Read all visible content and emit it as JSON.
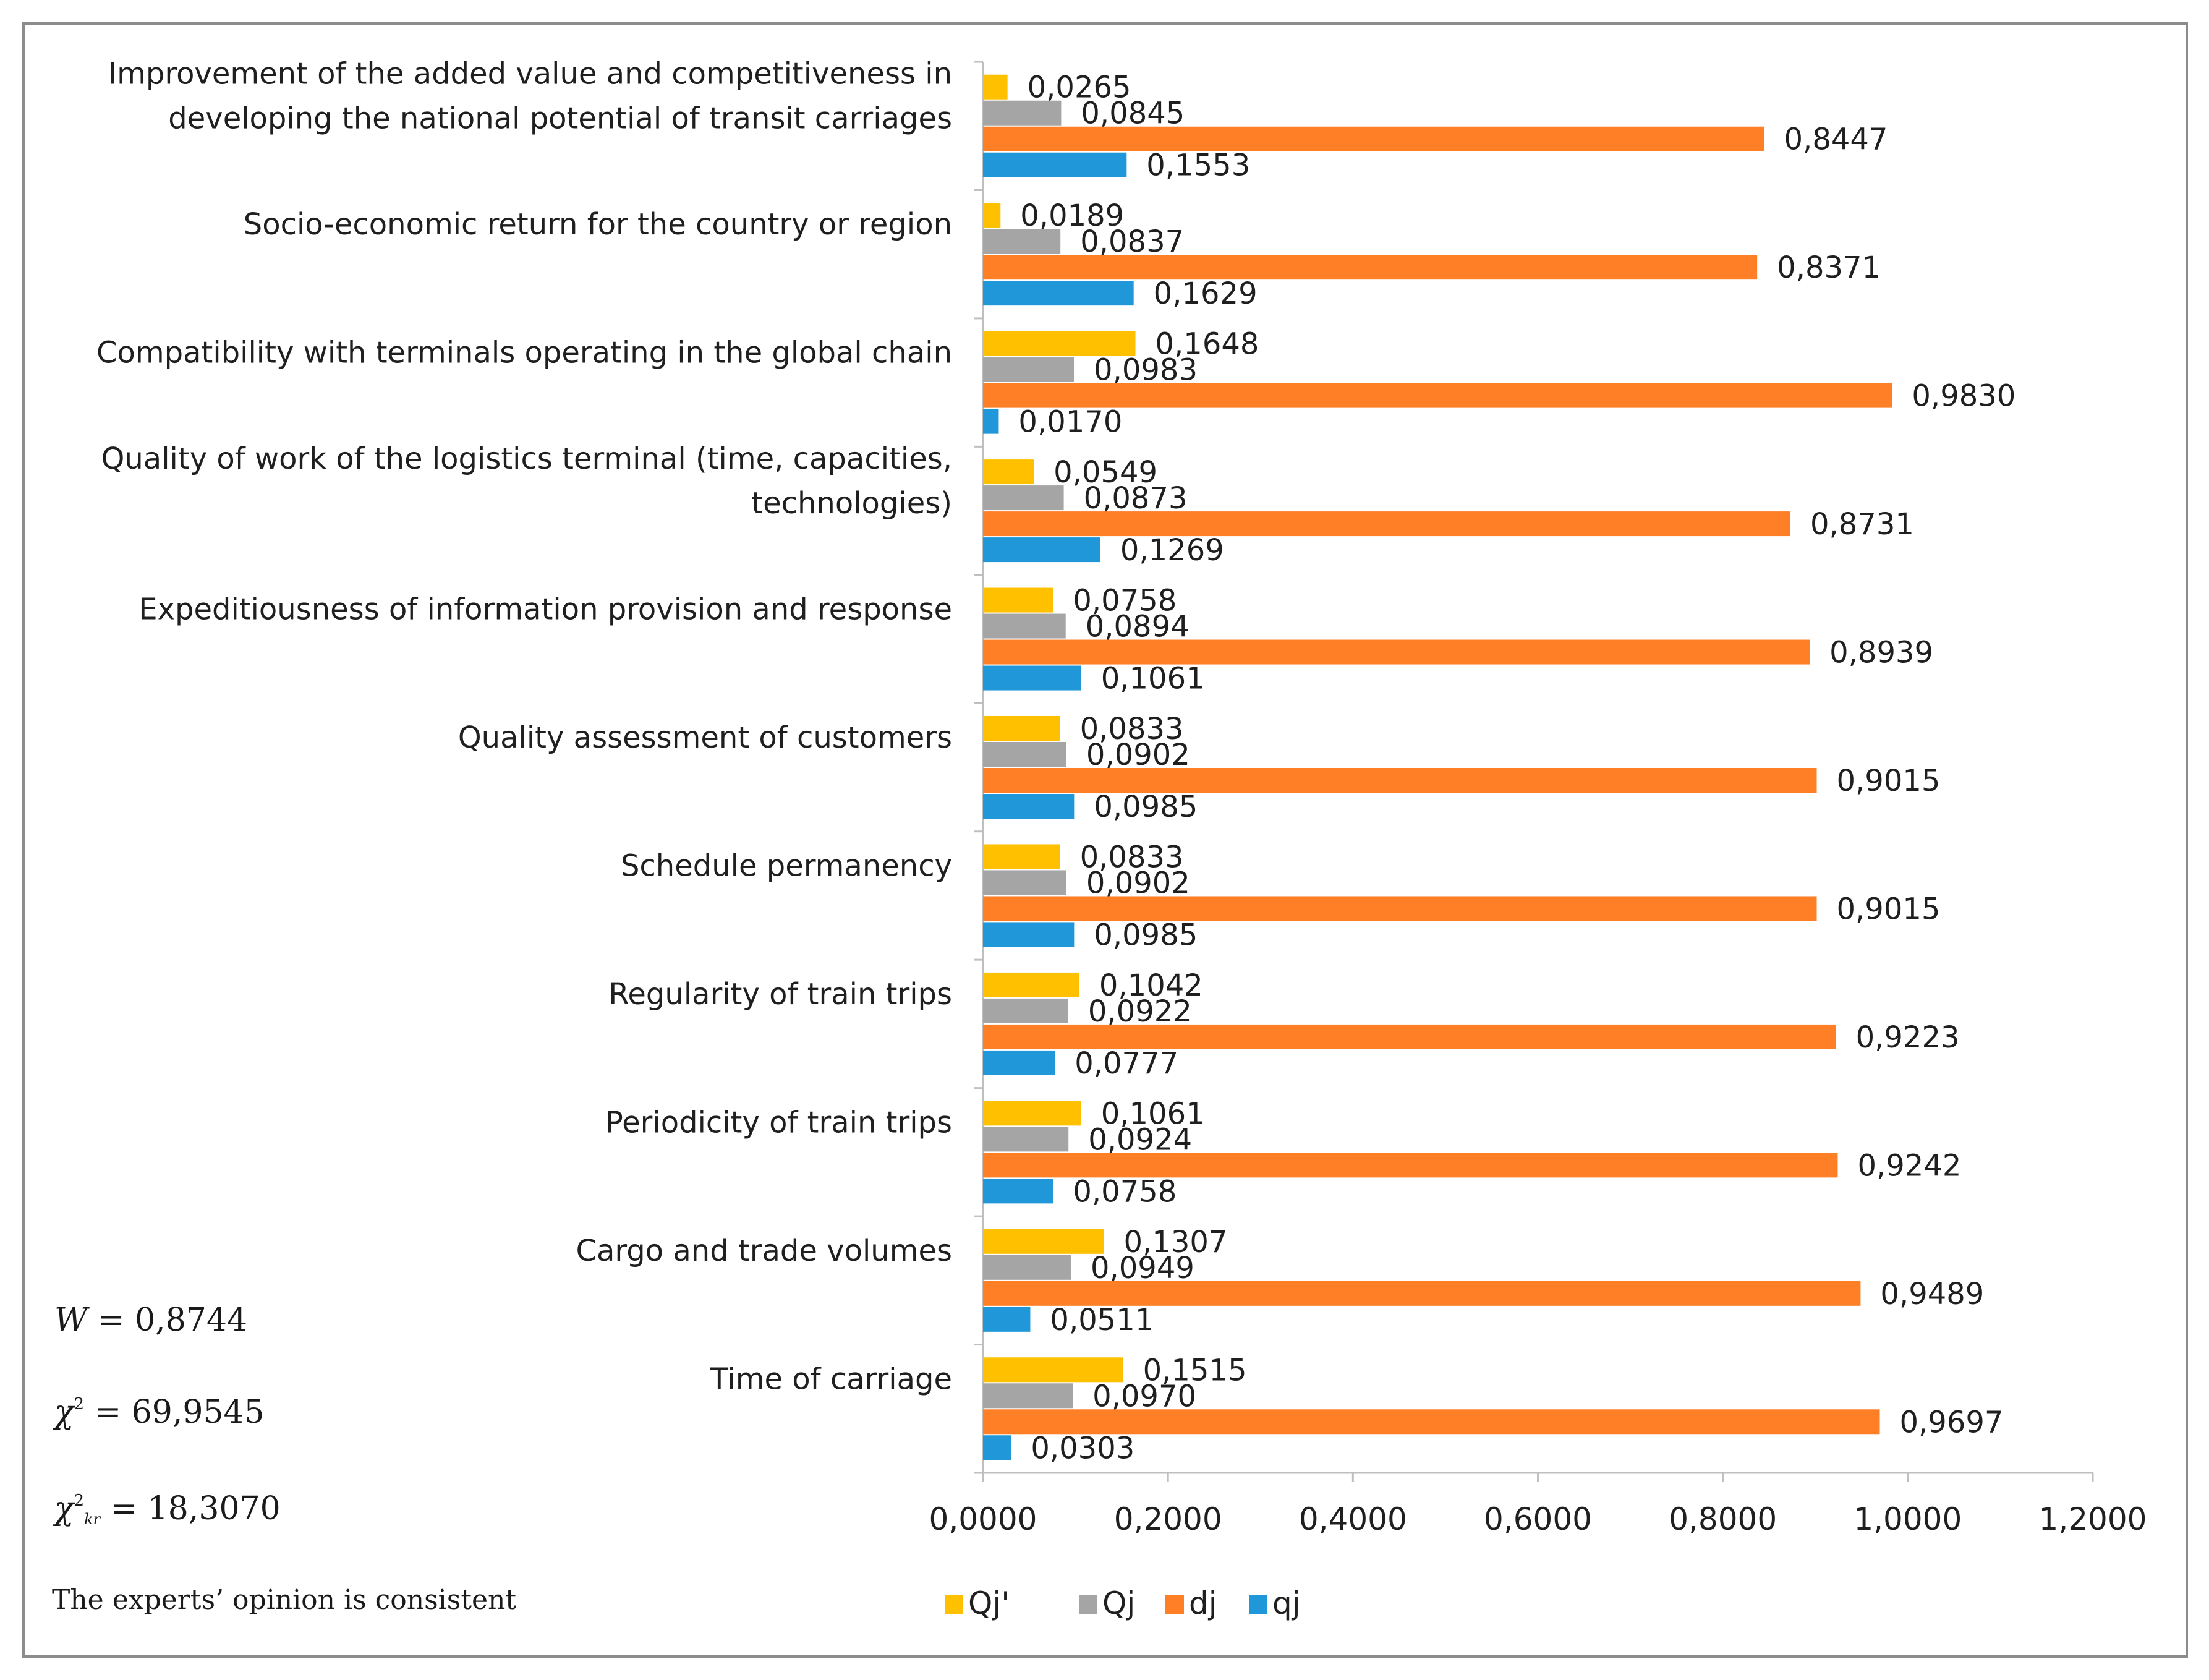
{
  "chart_data": {
    "type": "bar",
    "orientation": "horizontal",
    "title": "",
    "xlabel": "",
    "ylabel": "",
    "xlim": [
      0,
      1.2
    ],
    "x_ticks": [
      "0,0000",
      "0,2000",
      "0,4000",
      "0,6000",
      "0,8000",
      "1,0000",
      "1,2000"
    ],
    "x_tick_values": [
      0,
      0.2,
      0.4,
      0.6,
      0.8,
      1.0,
      1.2
    ],
    "grid": false,
    "legend_position": "bottom",
    "categories": [
      [
        "Improvement of the added value and competitiveness in",
        "developing the national potential of transit carriages"
      ],
      [
        "Socio-economic return for the country or region"
      ],
      [
        "Compatibility with terminals operating in the global chain"
      ],
      [
        "Quality of work of the logistics terminal (time, capacities,",
        "technologies)"
      ],
      [
        "Expeditiousness of information provision and response"
      ],
      [
        "Quality assessment of customers"
      ],
      [
        "Schedule permanency"
      ],
      [
        "Regularity of train trips"
      ],
      [
        "Periodicity of train trips"
      ],
      [
        "Cargo and trade volumes"
      ],
      [
        "Time of carriage"
      ]
    ],
    "series": [
      {
        "name": "Qj'",
        "color": "#FFC000",
        "values": [
          0.0265,
          0.0189,
          0.1648,
          0.0549,
          0.0758,
          0.0833,
          0.0833,
          0.1042,
          0.1061,
          0.1307,
          0.1515
        ],
        "labels": [
          "0,0265",
          "0,0189",
          "0,1648",
          "0,0549",
          "0,0758",
          "0,0833",
          "0,0833",
          "0,1042",
          "0,1061",
          "0,1307",
          "0,1515"
        ]
      },
      {
        "name": "Qj",
        "color": "#A5A5A5",
        "values": [
          0.0845,
          0.0837,
          0.0983,
          0.0873,
          0.0894,
          0.0902,
          0.0902,
          0.0922,
          0.0924,
          0.0949,
          0.097
        ],
        "labels": [
          "0,0845",
          "0,0837",
          "0,0983",
          "0,0873",
          "0,0894",
          "0,0902",
          "0,0902",
          "0,0922",
          "0,0924",
          "0,0949",
          "0,0970"
        ]
      },
      {
        "name": "dj",
        "color": "#FF7F27",
        "values": [
          0.8447,
          0.8371,
          0.983,
          0.8731,
          0.8939,
          0.9015,
          0.9015,
          0.9223,
          0.9242,
          0.9489,
          0.9697
        ],
        "labels": [
          "0,8447",
          "0,8371",
          "0,9830",
          "0,8731",
          "0,8939",
          "0,9015",
          "0,9015",
          "0,9223",
          "0,9242",
          "0,9489",
          "0,9697"
        ]
      },
      {
        "name": "qj",
        "color": "#1F97D8",
        "values": [
          0.1553,
          0.1629,
          0.017,
          0.1269,
          0.1061,
          0.0985,
          0.0985,
          0.0777,
          0.0758,
          0.0511,
          0.0303
        ],
        "labels": [
          "0,1553",
          "0,1629",
          "0,0170",
          "0,1269",
          "0,1061",
          "0,0985",
          "0,0985",
          "0,0777",
          "0,0758",
          "0,0511",
          "0,0303"
        ]
      }
    ]
  },
  "stats": {
    "w_symbol": "W",
    "w_value": "= 0,8744",
    "chi_symbol": "χ",
    "chi_sup": "2",
    "chi_value": "= 69,9545",
    "chikr_symbol": "χ",
    "chikr_sup": "2",
    "chikr_sub": "kr",
    "chikr_value": "= 18,3070",
    "note": "The experts’ opinion is consistent"
  }
}
